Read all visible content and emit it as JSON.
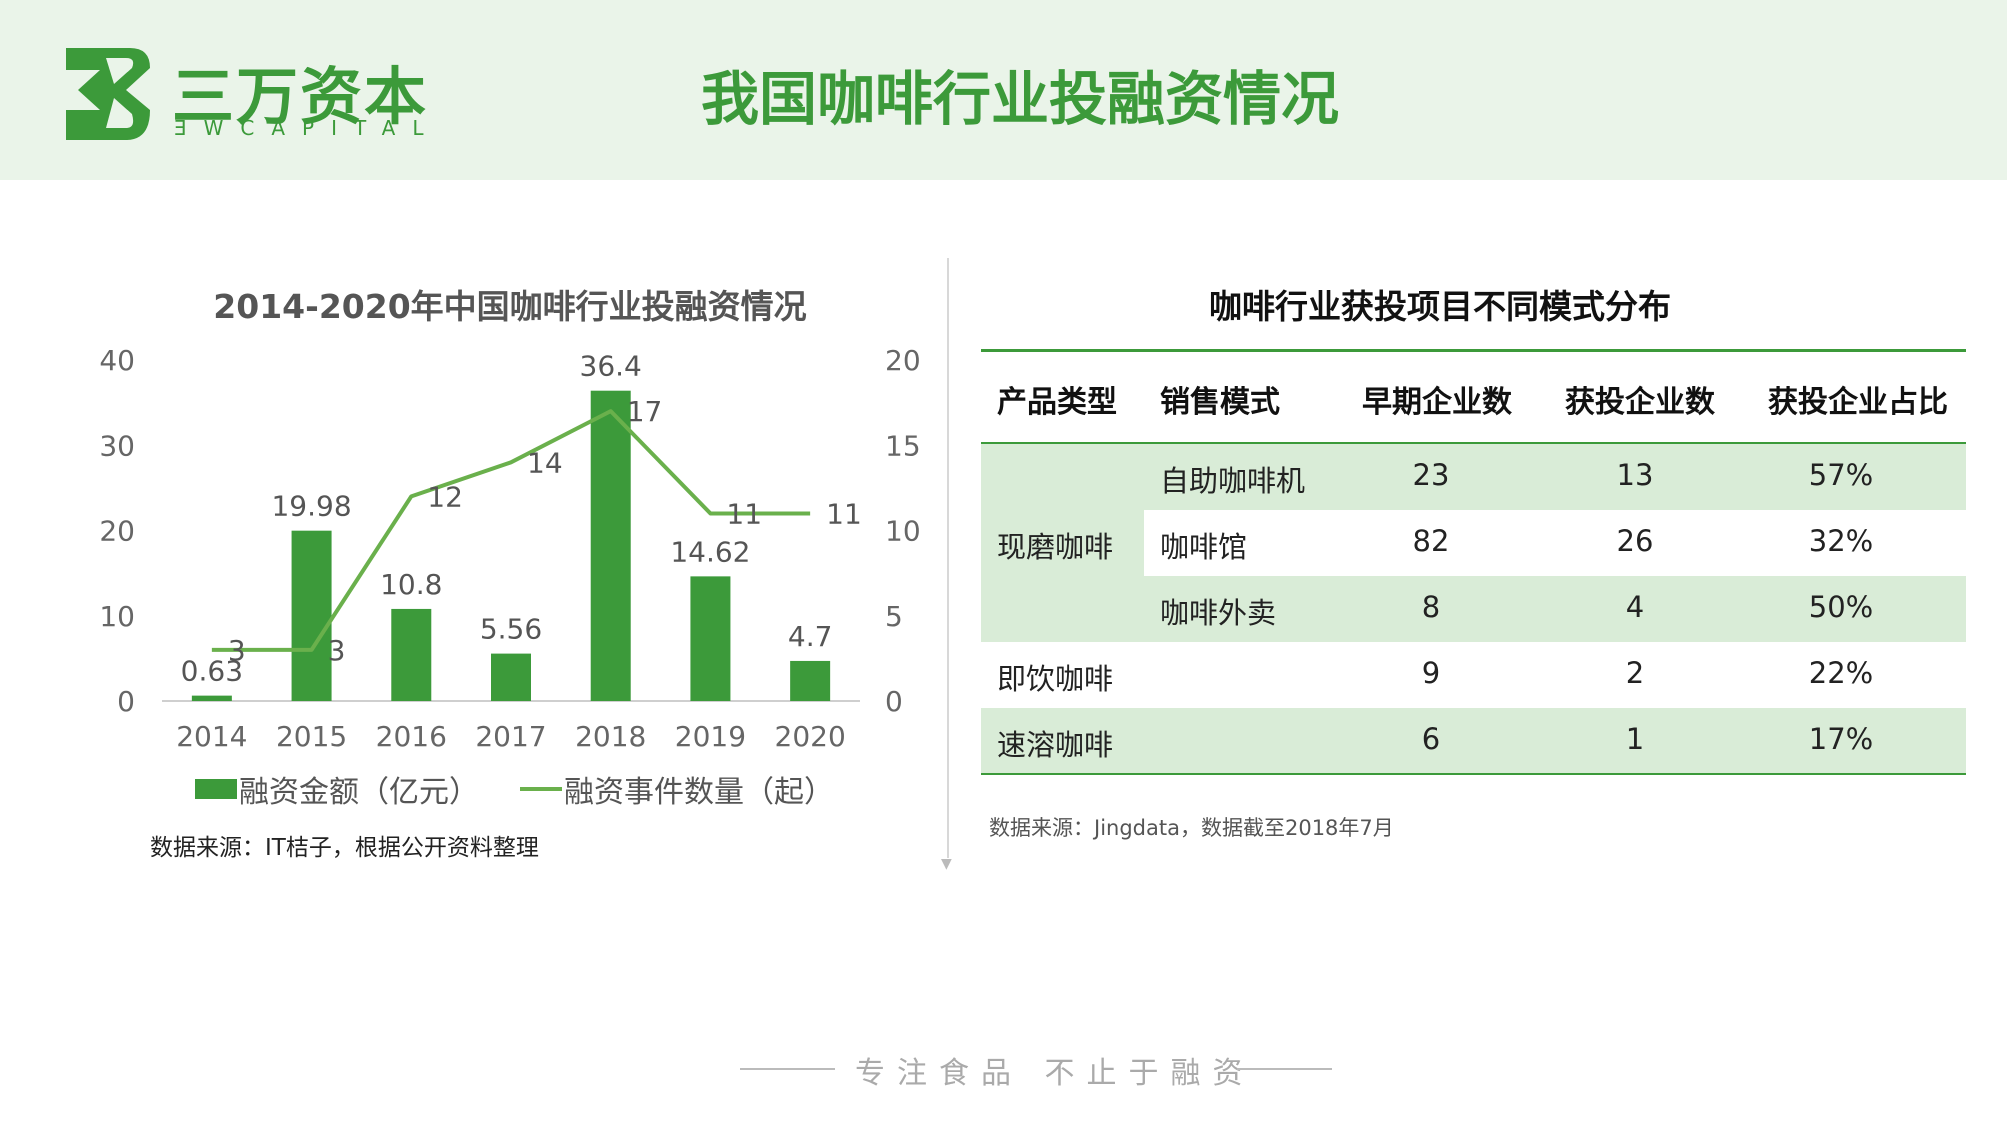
{
  "header": {
    "logo_cn": "三万资本",
    "logo_en": "ƎWCAPITAL",
    "title": "我国咖啡行业投融资情况",
    "bg_color": "#eaf4e9",
    "accent_color": "#3c9a3a"
  },
  "left_panel": {
    "title": "2014-2020年中国咖啡行业投融资情况",
    "source": "数据来源：IT桔子，根据公开资料整理"
  },
  "chart_data": {
    "type": "bar",
    "title": "2014-2020年中国咖啡行业投融资情况",
    "categories": [
      "2014",
      "2015",
      "2016",
      "2017",
      "2018",
      "2019",
      "2020"
    ],
    "series": [
      {
        "name": "融资金额（亿元）",
        "type": "bar",
        "axis": "left",
        "color": "#3c9a3a",
        "values": [
          0.63,
          19.98,
          10.8,
          5.56,
          36.4,
          14.62,
          4.7
        ]
      },
      {
        "name": "融资事件数量（起）",
        "type": "line",
        "axis": "right",
        "color": "#6ab04c",
        "values": [
          3,
          3,
          12,
          14,
          17,
          11,
          11
        ]
      }
    ],
    "y_left": {
      "min": 0,
      "max": 40,
      "ticks": [
        0,
        10,
        20,
        30,
        40
      ]
    },
    "y_right": {
      "min": 0,
      "max": 20,
      "ticks": [
        0,
        5,
        10,
        15,
        20
      ]
    },
    "grid": false,
    "legend_position": "bottom"
  },
  "right_panel": {
    "title": "咖啡行业获投项目不同模式分布",
    "headers": [
      "产品类型",
      "销售模式",
      "早期企业数",
      "获投企业数",
      "获投企业占比"
    ],
    "rows": [
      {
        "type": "现磨咖啡",
        "mode": "自助咖啡机",
        "early": "23",
        "invested": "13",
        "ratio": "57%"
      },
      {
        "type": "",
        "mode": "咖啡馆",
        "early": "82",
        "invested": "26",
        "ratio": "32%"
      },
      {
        "type": "",
        "mode": "咖啡外卖",
        "early": "8",
        "invested": "4",
        "ratio": "50%"
      },
      {
        "type": "即饮咖啡",
        "mode": "",
        "early": "9",
        "invested": "2",
        "ratio": "22%"
      },
      {
        "type": "速溶咖啡",
        "mode": "",
        "early": "6",
        "invested": "1",
        "ratio": "17%"
      }
    ],
    "source": "数据来源：Jingdata，数据截至2018年7月",
    "stripe_color": "#d9ecd7"
  },
  "footer": {
    "slogan": "专注食品 不止于融资"
  }
}
